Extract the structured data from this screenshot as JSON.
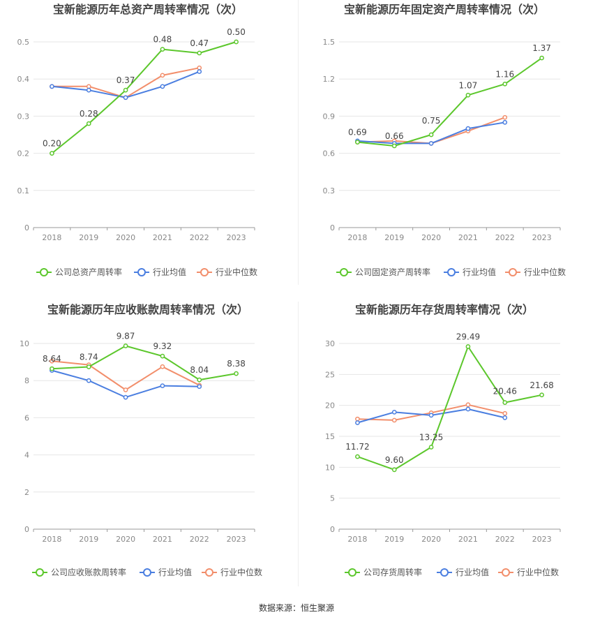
{
  "chart_data": [
    {
      "type": "line",
      "title": "宝新能源历年总资产周转率情况（次）",
      "categories": [
        "2018",
        "2019",
        "2020",
        "2021",
        "2022",
        "2023"
      ],
      "yticks": [
        "0",
        "0.1",
        "0.2",
        "0.3",
        "0.4",
        "0.5"
      ],
      "ylim": [
        0,
        0.5
      ],
      "grid": true,
      "legend_position": "bottom",
      "series": [
        {
          "name": "公司总资产周转率",
          "color": "#5cc72c",
          "values": [
            0.2,
            0.28,
            0.37,
            0.48,
            0.47,
            0.5
          ],
          "labels": [
            "0.20",
            "0.28",
            "0.37",
            "0.48",
            "0.47",
            "0.50"
          ]
        },
        {
          "name": "行业均值",
          "color": "#4a7ee0",
          "values": [
            0.38,
            0.37,
            0.35,
            0.38,
            0.42,
            null
          ]
        },
        {
          "name": "行业中位数",
          "color": "#f28e6b",
          "values": [
            0.38,
            0.38,
            0.35,
            0.41,
            0.43,
            null
          ]
        }
      ]
    },
    {
      "type": "line",
      "title": "宝新能源历年固定资产周转率情况（次）",
      "categories": [
        "2018",
        "2019",
        "2020",
        "2021",
        "2022",
        "2023"
      ],
      "yticks": [
        "0",
        "0.3",
        "0.6",
        "0.9",
        "1.2",
        "1.5"
      ],
      "ylim": [
        0,
        1.5
      ],
      "grid": true,
      "legend_position": "bottom",
      "series": [
        {
          "name": "公司固定资产周转率",
          "color": "#5cc72c",
          "values": [
            0.69,
            0.66,
            0.75,
            1.07,
            1.16,
            1.37
          ],
          "labels": [
            "0.69",
            "0.66",
            "0.75",
            "1.07",
            "1.16",
            "1.37"
          ]
        },
        {
          "name": "行业均值",
          "color": "#4a7ee0",
          "values": [
            0.7,
            0.68,
            0.68,
            0.8,
            0.85,
            null
          ]
        },
        {
          "name": "行业中位数",
          "color": "#f28e6b",
          "values": [
            0.69,
            0.7,
            0.68,
            0.78,
            0.89,
            null
          ]
        }
      ]
    },
    {
      "type": "line",
      "title": "宝新能源历年应收账款周转率情况（次）",
      "categories": [
        "2018",
        "2019",
        "2020",
        "2021",
        "2022",
        "2023"
      ],
      "yticks": [
        "0",
        "2",
        "4",
        "6",
        "8",
        "10"
      ],
      "ylim": [
        0,
        10
      ],
      "grid": true,
      "legend_position": "bottom",
      "series": [
        {
          "name": "公司应收账款周转率",
          "color": "#5cc72c",
          "values": [
            8.64,
            8.74,
            9.87,
            9.32,
            8.04,
            8.38
          ],
          "labels": [
            "8.64",
            "8.74",
            "9.87",
            "9.32",
            "8.04",
            "8.38"
          ]
        },
        {
          "name": "行业均值",
          "color": "#4a7ee0",
          "values": [
            8.55,
            8.0,
            7.1,
            7.72,
            7.68,
            null
          ]
        },
        {
          "name": "行业中位数",
          "color": "#f28e6b",
          "values": [
            9.05,
            8.85,
            7.5,
            8.75,
            7.75,
            null
          ]
        }
      ]
    },
    {
      "type": "line",
      "title": "宝新能源历年存货周转率情况（次）",
      "categories": [
        "2018",
        "2019",
        "2020",
        "2021",
        "2022",
        "2023"
      ],
      "yticks": [
        "0",
        "5",
        "10",
        "15",
        "20",
        "25",
        "30"
      ],
      "ylim": [
        0,
        30
      ],
      "grid": true,
      "legend_position": "bottom",
      "series": [
        {
          "name": "公司存货周转率",
          "color": "#5cc72c",
          "values": [
            11.72,
            9.6,
            13.25,
            29.49,
            20.46,
            21.68
          ],
          "labels": [
            "11.72",
            "9.60",
            "13.25",
            "29.49",
            "20.46",
            "21.68"
          ]
        },
        {
          "name": "行业均值",
          "color": "#4a7ee0",
          "values": [
            17.2,
            18.9,
            18.4,
            19.4,
            18.0,
            null
          ]
        },
        {
          "name": "行业中位数",
          "color": "#f28e6b",
          "values": [
            17.8,
            17.6,
            18.8,
            20.1,
            18.7,
            null
          ]
        }
      ]
    }
  ],
  "footer": {
    "source": "数据来源：恒生聚源"
  }
}
